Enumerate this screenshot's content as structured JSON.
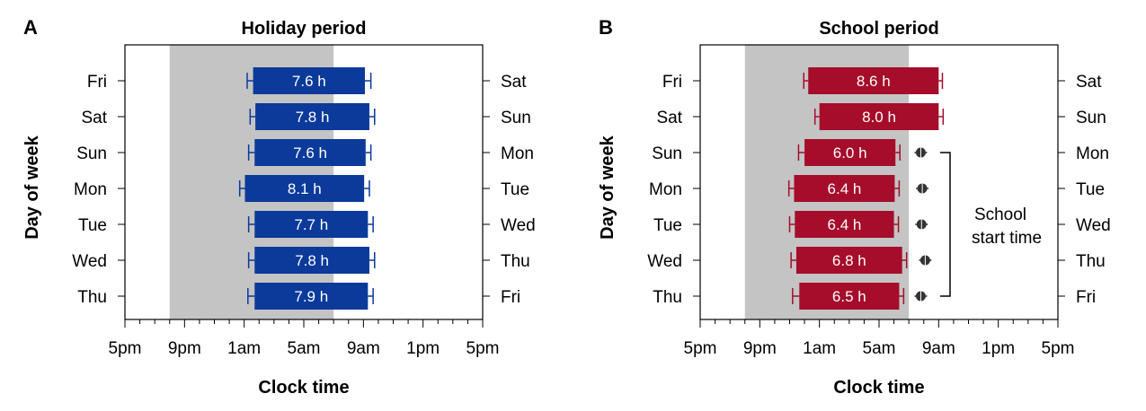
{
  "colors": {
    "holiday_bar": "#0b3a9a",
    "school_bar": "#a50d2a",
    "night_shade": "#c4c4c4",
    "school_start_marker": "#333333"
  },
  "chart_data": [
    {
      "type": "bar",
      "panel": "A",
      "title": "Holiday period",
      "xlabel": "Clock time",
      "ylabel": "Day of week",
      "x_ticks": [
        "5pm",
        "9pm",
        "1am",
        "5am",
        "9am",
        "1pm",
        "5pm"
      ],
      "x_range_hours": [
        17,
        41
      ],
      "night_shade_hours": [
        20,
        31
      ],
      "left_days": [
        "Fri",
        "Sat",
        "Sun",
        "Mon",
        "Tue",
        "Wed",
        "Thu"
      ],
      "right_days": [
        "Sat",
        "Sun",
        "Mon",
        "Tue",
        "Wed",
        "Thu",
        "Fri"
      ],
      "bars": [
        {
          "start": 1.6,
          "end": 9.1,
          "label": "7.6 h",
          "err_start": 0.4,
          "err_end": 0.4
        },
        {
          "start": 1.75,
          "end": 9.4,
          "label": "7.8 h",
          "err_start": 0.35,
          "err_end": 0.35
        },
        {
          "start": 1.7,
          "end": 9.15,
          "label": "7.6 h",
          "err_start": 0.4,
          "err_end": 0.35
        },
        {
          "start": 1.05,
          "end": 9.05,
          "label": "8.1 h",
          "err_start": 0.35,
          "err_end": 0.35
        },
        {
          "start": 1.7,
          "end": 9.3,
          "label": "7.7 h",
          "err_start": 0.4,
          "err_end": 0.35
        },
        {
          "start": 1.7,
          "end": 9.4,
          "label": "7.8 h",
          "err_start": 0.4,
          "err_end": 0.35
        },
        {
          "start": 1.7,
          "end": 9.3,
          "label": "7.9 h",
          "err_start": 0.45,
          "err_end": 0.35
        }
      ]
    },
    {
      "type": "bar",
      "panel": "B",
      "title": "School period",
      "xlabel": "Clock time",
      "ylabel": "Day of week",
      "x_ticks": [
        "5pm",
        "9pm",
        "1am",
        "5am",
        "9am",
        "1pm",
        "5pm"
      ],
      "x_range_hours": [
        17,
        41
      ],
      "night_shade_hours": [
        20,
        31
      ],
      "left_days": [
        "Fri",
        "Sat",
        "Sun",
        "Mon",
        "Tue",
        "Wed",
        "Thu"
      ],
      "right_days": [
        "Sat",
        "Sun",
        "Mon",
        "Tue",
        "Wed",
        "Thu",
        "Fri"
      ],
      "bars": [
        {
          "start": 0.25,
          "end": 9.0,
          "label": "8.6 h",
          "err_start": 0.3,
          "err_end": 0.25
        },
        {
          "start": 1.0,
          "end": 9.0,
          "label": "8.0 h",
          "err_start": 0.3,
          "err_end": 0.3
        },
        {
          "start": 0.0,
          "end": 6.1,
          "label": "6.0 h",
          "err_start": 0.4,
          "err_end": 0.3
        },
        {
          "start": -0.7,
          "end": 6.05,
          "label": "6.4 h",
          "err_start": 0.35,
          "err_end": 0.3
        },
        {
          "start": -0.65,
          "end": 6.0,
          "label": "6.4 h",
          "err_start": 0.35,
          "err_end": 0.3
        },
        {
          "start": -0.55,
          "end": 6.55,
          "label": "6.8 h",
          "err_start": 0.35,
          "err_end": 0.3
        },
        {
          "start": -0.35,
          "end": 6.35,
          "label": "6.5 h",
          "err_start": 0.45,
          "err_end": 0.3
        }
      ],
      "school_start_times": [
        null,
        null,
        7.8,
        7.9,
        7.85,
        8.1,
        7.8
      ],
      "annotation": [
        "School",
        "start time"
      ]
    }
  ]
}
